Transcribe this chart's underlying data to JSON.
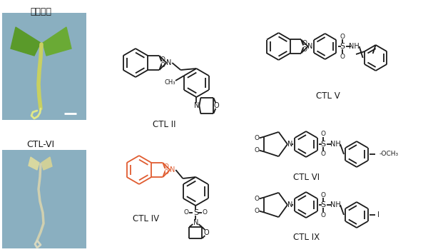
{
  "title_text": "最少培地",
  "label_ctlvi": "CTL-VI",
  "bg_color": "#ffffff",
  "photo1_color": "#8aafc0",
  "photo2_color": "#8aafc0",
  "ctl2_label": "CTL II",
  "ctl4_label": "CTL IV",
  "ctl5_label": "CTL V",
  "ctl6_label": "CTL VI",
  "ctl9_label": "CTL IX",
  "orange_color": "#e05c30",
  "black_color": "#1a1a1a"
}
